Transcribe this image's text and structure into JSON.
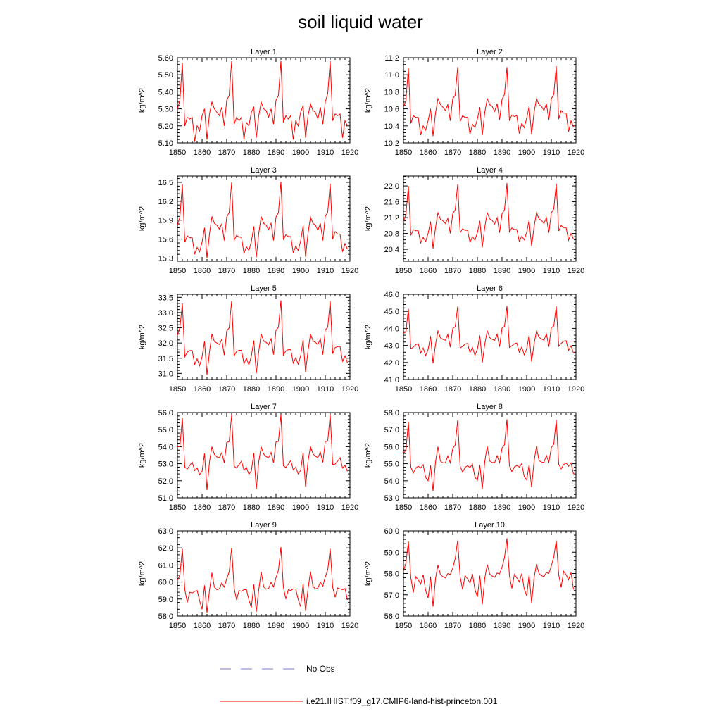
{
  "title": "soil liquid water",
  "legend": {
    "obs_label": "No Obs",
    "obs_color": "#7b7bd6",
    "model_label": "i.e21.IHIST.f09_g17.CMIP6-land-hist-princeton.001",
    "model_color": "#ff0000"
  },
  "chart_data": [
    {
      "type": "line",
      "title": "Layer 1",
      "ylabel": "kg/m^2",
      "xlim": [
        1850,
        1920
      ],
      "ylim": [
        5.1,
        5.6
      ],
      "yticks": [
        "5.10",
        "5.20",
        "5.30",
        "5.40",
        "5.50",
        "5.60"
      ],
      "xticks": [
        "1850",
        "1860",
        "1870",
        "1880",
        "1890",
        "1900",
        "1910",
        "1920"
      ],
      "x_start": 1850,
      "series": [
        {
          "values": [
            5.3,
            5.35,
            5.57,
            5.2,
            5.25,
            5.24,
            5.25,
            5.11,
            5.2,
            5.17,
            5.26,
            5.3,
            5.12,
            5.27,
            5.34,
            5.3,
            5.28,
            5.26,
            5.31,
            5.2,
            5.35,
            5.38,
            5.58,
            5.21,
            5.25,
            5.23,
            5.25,
            5.12,
            5.22,
            5.2,
            5.28,
            5.31,
            5.13,
            5.26,
            5.34,
            5.3,
            5.29,
            5.25,
            5.3,
            5.21,
            5.35,
            5.38,
            5.58,
            5.22,
            5.26,
            5.24,
            5.26,
            5.12,
            5.23,
            5.2,
            5.28,
            5.32,
            5.13,
            5.26,
            5.33,
            5.29,
            5.28,
            5.24,
            5.31,
            5.21,
            5.34,
            5.39,
            5.58,
            5.23,
            5.27,
            5.26,
            5.27,
            5.13,
            5.23,
            5.2
          ]
        }
      ]
    },
    {
      "type": "line",
      "title": "Layer 2",
      "ylabel": "kg/m^2",
      "xlim": [
        1850,
        1920
      ],
      "ylim": [
        10.2,
        11.2
      ],
      "yticks": [
        "10.2",
        "10.4",
        "10.6",
        "10.8",
        "11.0",
        "11.2"
      ],
      "xticks": [
        "1850",
        "1860",
        "1870",
        "1880",
        "1890",
        "1900",
        "1910",
        "1920"
      ],
      "x_start": 1850,
      "series": [
        {
          "values": [
            10.62,
            10.7,
            11.08,
            10.43,
            10.52,
            10.5,
            10.5,
            10.29,
            10.4,
            10.35,
            10.46,
            10.6,
            10.28,
            10.55,
            10.72,
            10.65,
            10.62,
            10.58,
            10.65,
            10.46,
            10.72,
            10.76,
            11.09,
            10.45,
            10.52,
            10.5,
            10.5,
            10.3,
            10.42,
            10.38,
            10.48,
            10.62,
            10.29,
            10.56,
            10.72,
            10.65,
            10.63,
            10.57,
            10.66,
            10.47,
            10.71,
            10.77,
            11.09,
            10.46,
            10.53,
            10.51,
            10.52,
            10.31,
            10.43,
            10.38,
            10.49,
            10.63,
            10.3,
            10.56,
            10.72,
            10.65,
            10.63,
            10.58,
            10.66,
            10.47,
            10.72,
            10.77,
            11.1,
            10.48,
            10.58,
            10.55,
            10.55,
            10.33,
            10.46,
            10.39
          ]
        }
      ]
    },
    {
      "type": "line",
      "title": "Layer 3",
      "ylabel": "kg/m^2",
      "xlim": [
        1850,
        1920
      ],
      "ylim": [
        15.25,
        16.6
      ],
      "yticks": [
        "15.3",
        "15.6",
        "15.9",
        "16.2",
        "16.5"
      ],
      "xticks": [
        "1850",
        "1860",
        "1870",
        "1880",
        "1890",
        "1900",
        "1910",
        "1920"
      ],
      "x_start": 1850,
      "series": [
        {
          "values": [
            15.82,
            15.95,
            16.47,
            15.55,
            15.65,
            15.62,
            15.62,
            15.36,
            15.47,
            15.4,
            15.55,
            15.78,
            15.3,
            15.68,
            15.96,
            15.85,
            15.82,
            15.76,
            15.84,
            15.58,
            15.95,
            16.02,
            16.5,
            15.58,
            15.66,
            15.63,
            15.63,
            15.37,
            15.48,
            15.42,
            15.56,
            15.8,
            15.31,
            15.69,
            15.96,
            15.85,
            15.82,
            15.75,
            15.85,
            15.58,
            15.95,
            16.02,
            16.51,
            15.59,
            15.67,
            15.64,
            15.64,
            15.38,
            15.49,
            15.42,
            15.57,
            15.81,
            15.32,
            15.69,
            15.95,
            15.85,
            15.82,
            15.74,
            15.85,
            15.58,
            15.96,
            16.03,
            16.48,
            15.6,
            15.72,
            15.68,
            15.68,
            15.4,
            15.53,
            15.44
          ]
        }
      ]
    },
    {
      "type": "line",
      "title": "Layer 4",
      "ylabel": "kg/m^2",
      "xlim": [
        1850,
        1920
      ],
      "ylim": [
        20.1,
        22.25
      ],
      "yticks": [
        "20.4",
        "20.8",
        "21.2",
        "21.6",
        "22.0"
      ],
      "xticks": [
        "1850",
        "1860",
        "1870",
        "1880",
        "1890",
        "1900",
        "1910",
        "1920"
      ],
      "x_start": 1850,
      "series": [
        {
          "values": [
            21.1,
            21.28,
            22.0,
            20.75,
            20.9,
            20.87,
            20.87,
            20.56,
            20.7,
            20.6,
            20.8,
            21.1,
            20.42,
            20.95,
            21.32,
            21.16,
            21.12,
            21.05,
            21.18,
            20.8,
            21.3,
            21.4,
            22.04,
            20.82,
            20.92,
            20.88,
            20.88,
            20.58,
            20.72,
            20.63,
            20.82,
            21.12,
            20.45,
            20.96,
            21.32,
            21.17,
            21.13,
            21.04,
            21.2,
            20.82,
            21.3,
            21.4,
            22.07,
            20.84,
            20.94,
            20.9,
            20.9,
            20.6,
            20.73,
            20.64,
            20.83,
            21.13,
            20.48,
            20.97,
            21.33,
            21.17,
            21.13,
            21.05,
            21.2,
            20.82,
            21.32,
            21.42,
            22.06,
            20.86,
            21.0,
            20.95,
            20.95,
            20.63,
            20.8,
            20.66
          ]
        }
      ]
    },
    {
      "type": "line",
      "title": "Layer 5",
      "ylabel": "kg/m^2",
      "xlim": [
        1850,
        1920
      ],
      "ylim": [
        30.8,
        33.6
      ],
      "yticks": [
        "31.0",
        "31.5",
        "32.0",
        "32.5",
        "33.0",
        "33.5"
      ],
      "xticks": [
        "1850",
        "1860",
        "1870",
        "1880",
        "1890",
        "1900",
        "1910",
        "1920"
      ],
      "x_start": 1850,
      "series": [
        {
          "values": [
            32.25,
            32.5,
            33.3,
            31.55,
            31.7,
            31.75,
            31.75,
            31.3,
            31.48,
            31.25,
            31.55,
            32.05,
            30.95,
            31.7,
            32.3,
            32.05,
            32.0,
            31.95,
            32.12,
            31.6,
            32.4,
            32.5,
            33.38,
            31.58,
            31.72,
            31.76,
            31.76,
            31.32,
            31.5,
            31.28,
            31.57,
            32.08,
            31.0,
            31.72,
            32.3,
            32.06,
            32.02,
            31.94,
            32.14,
            31.62,
            32.42,
            32.52,
            33.4,
            31.6,
            31.74,
            31.78,
            31.78,
            31.34,
            31.52,
            31.3,
            31.58,
            32.1,
            31.05,
            31.74,
            32.3,
            32.07,
            32.02,
            31.95,
            32.14,
            31.62,
            32.43,
            32.52,
            33.38,
            31.65,
            31.85,
            31.88,
            31.88,
            31.4,
            31.58,
            31.35
          ]
        }
      ]
    },
    {
      "type": "line",
      "title": "Layer 6",
      "ylabel": "kg/m^2",
      "xlim": [
        1850,
        1920
      ],
      "ylim": [
        41.0,
        46.0
      ],
      "yticks": [
        "41.0",
        "42.0",
        "43.0",
        "44.0",
        "45.0",
        "46.0"
      ],
      "xticks": [
        "1850",
        "1860",
        "1870",
        "1880",
        "1890",
        "1900",
        "1910",
        "1920"
      ],
      "x_start": 1850,
      "series": [
        {
          "values": [
            43.7,
            43.8,
            45.15,
            42.8,
            42.9,
            43.05,
            43.1,
            42.55,
            42.85,
            42.4,
            42.75,
            43.55,
            41.95,
            43.05,
            43.85,
            43.45,
            43.35,
            43.3,
            43.65,
            42.9,
            44.0,
            44.1,
            45.28,
            42.85,
            42.95,
            43.08,
            43.12,
            42.58,
            42.88,
            42.42,
            42.78,
            43.58,
            42.0,
            43.08,
            43.85,
            43.46,
            43.36,
            43.3,
            43.66,
            42.92,
            44.02,
            44.12,
            45.32,
            42.88,
            42.98,
            43.1,
            43.14,
            42.6,
            42.9,
            42.45,
            42.8,
            43.6,
            42.05,
            43.1,
            43.85,
            43.48,
            43.38,
            43.3,
            43.68,
            42.92,
            44.05,
            44.14,
            45.3,
            42.95,
            43.12,
            43.25,
            43.28,
            42.7,
            42.98,
            42.55
          ]
        }
      ]
    },
    {
      "type": "line",
      "title": "Layer 7",
      "ylabel": "kg/m^2",
      "xlim": [
        1850,
        1920
      ],
      "ylim": [
        51.0,
        56.0
      ],
      "yticks": [
        "51.0",
        "52.0",
        "53.0",
        "54.0",
        "55.0",
        "56.0"
      ],
      "xticks": [
        "1850",
        "1860",
        "1870",
        "1880",
        "1890",
        "1900",
        "1910",
        "1920"
      ],
      "x_start": 1850,
      "series": [
        {
          "values": [
            54.0,
            54.0,
            55.7,
            52.8,
            52.7,
            52.9,
            53.1,
            52.6,
            52.75,
            52.35,
            52.55,
            53.6,
            51.45,
            53.1,
            54.0,
            53.55,
            53.4,
            53.35,
            53.65,
            53.05,
            54.25,
            54.3,
            55.85,
            52.85,
            52.75,
            52.95,
            53.15,
            52.62,
            52.78,
            52.38,
            52.58,
            53.62,
            51.5,
            53.12,
            54.0,
            53.56,
            53.42,
            53.35,
            53.66,
            53.06,
            54.28,
            54.32,
            55.88,
            52.88,
            52.78,
            52.98,
            53.18,
            52.64,
            52.8,
            52.4,
            52.6,
            53.64,
            51.65,
            53.14,
            54.02,
            53.58,
            53.44,
            53.36,
            53.68,
            53.08,
            54.3,
            54.34,
            55.88,
            52.95,
            52.98,
            53.15,
            53.35,
            52.75,
            52.9,
            52.55
          ]
        }
      ]
    },
    {
      "type": "line",
      "title": "Layer 8",
      "ylabel": "kg/m^2",
      "xlim": [
        1850,
        1920
      ],
      "ylim": [
        53.0,
        58.0
      ],
      "yticks": [
        "53.0",
        "54.0",
        "55.0",
        "56.0",
        "57.0",
        "58.0"
      ],
      "xticks": [
        "1850",
        "1860",
        "1870",
        "1880",
        "1890",
        "1900",
        "1910",
        "1920"
      ],
      "x_start": 1850,
      "series": [
        {
          "values": [
            55.6,
            55.8,
            57.45,
            54.8,
            54.45,
            54.75,
            54.85,
            54.75,
            54.95,
            54.2,
            54.0,
            54.9,
            53.4,
            55.1,
            56.0,
            55.15,
            55.05,
            55.05,
            55.45,
            55.05,
            55.9,
            56.1,
            57.55,
            54.85,
            54.5,
            54.78,
            54.88,
            54.78,
            54.98,
            54.22,
            54.02,
            54.92,
            53.52,
            55.12,
            56.02,
            55.16,
            55.08,
            55.06,
            55.46,
            55.06,
            55.92,
            56.12,
            57.6,
            54.88,
            54.54,
            54.8,
            54.9,
            54.8,
            55.0,
            54.25,
            54.05,
            54.95,
            53.62,
            55.14,
            56.04,
            55.18,
            55.1,
            55.08,
            55.48,
            55.08,
            55.95,
            56.15,
            57.58,
            54.98,
            54.7,
            54.95,
            55.05,
            54.85,
            55.05,
            54.4
          ]
        }
      ]
    },
    {
      "type": "line",
      "title": "Layer 9",
      "ylabel": "kg/m^2",
      "xlim": [
        1850,
        1920
      ],
      "ylim": [
        58.0,
        63.0
      ],
      "yticks": [
        "58.0",
        "59.0",
        "60.0",
        "61.0",
        "62.0",
        "63.0"
      ],
      "xticks": [
        "1850",
        "1860",
        "1870",
        "1880",
        "1890",
        "1900",
        "1910",
        "1920"
      ],
      "x_start": 1850,
      "series": [
        {
          "values": [
            60.1,
            60.4,
            61.95,
            59.55,
            58.8,
            59.4,
            59.35,
            59.45,
            59.5,
            58.9,
            58.4,
            59.8,
            58.2,
            59.5,
            60.55,
            59.7,
            59.55,
            59.6,
            59.95,
            59.7,
            60.2,
            60.6,
            62.0,
            59.65,
            58.95,
            59.5,
            59.45,
            59.55,
            59.55,
            58.95,
            58.5,
            59.85,
            58.25,
            59.55,
            60.6,
            59.72,
            59.58,
            59.62,
            59.98,
            59.72,
            60.25,
            60.7,
            62.05,
            59.7,
            59.0,
            59.55,
            59.5,
            59.6,
            59.58,
            58.98,
            58.55,
            59.9,
            58.3,
            59.58,
            60.62,
            59.74,
            59.6,
            59.64,
            60.0,
            59.75,
            60.3,
            60.72,
            61.95,
            59.7,
            59.1,
            59.65,
            59.6,
            59.55,
            59.62,
            58.95
          ]
        }
      ]
    },
    {
      "type": "line",
      "title": "Layer 10",
      "ylabel": "kg/m^2",
      "xlim": [
        1850,
        1920
      ],
      "ylim": [
        56.0,
        60.0
      ],
      "yticks": [
        "56.0",
        "57.0",
        "58.0",
        "59.0",
        "60.0"
      ],
      "xticks": [
        "1850",
        "1860",
        "1870",
        "1880",
        "1890",
        "1900",
        "1910",
        "1920"
      ],
      "x_start": 1850,
      "series": [
        {
          "values": [
            58.1,
            58.5,
            59.5,
            57.8,
            57.1,
            57.85,
            57.7,
            57.5,
            57.95,
            57.2,
            56.85,
            57.85,
            56.45,
            57.75,
            58.4,
            57.95,
            57.85,
            57.8,
            58.0,
            57.95,
            58.25,
            58.7,
            59.55,
            57.85,
            57.25,
            57.9,
            57.75,
            57.55,
            57.98,
            57.25,
            56.9,
            57.9,
            56.55,
            57.78,
            58.42,
            57.98,
            57.88,
            57.82,
            58.02,
            57.98,
            58.3,
            58.75,
            59.65,
            57.9,
            57.3,
            57.95,
            57.8,
            57.6,
            58.0,
            57.28,
            56.95,
            57.95,
            56.62,
            57.8,
            58.45,
            58.0,
            57.9,
            57.85,
            58.05,
            58.0,
            58.35,
            58.78,
            59.55,
            57.95,
            57.35,
            58.1,
            57.95,
            57.7,
            58.05,
            57.25
          ]
        }
      ]
    }
  ]
}
